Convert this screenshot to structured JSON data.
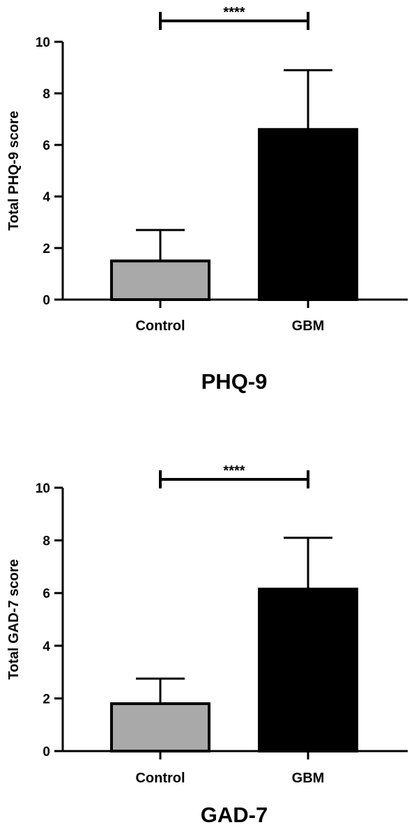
{
  "chart_data": [
    {
      "type": "bar",
      "title": "PHQ-9",
      "ylabel": "Total PHQ-9 score",
      "xlabel": "",
      "ylim": [
        0,
        10
      ],
      "yticks": [
        0,
        2,
        4,
        6,
        8,
        10
      ],
      "categories": [
        "Control",
        "GBM"
      ],
      "values": [
        1.5,
        6.6
      ],
      "error_upper": [
        2.7,
        8.9
      ],
      "bar_colors": [
        "#a9a9a9",
        "#000000"
      ],
      "significance": {
        "from": "Control",
        "to": "GBM",
        "label": "****"
      },
      "grid": false,
      "legend": "none"
    },
    {
      "type": "bar",
      "title": "GAD-7",
      "ylabel": "Total GAD-7 score",
      "xlabel": "",
      "ylim": [
        0,
        10
      ],
      "yticks": [
        0,
        2,
        4,
        6,
        8,
        10
      ],
      "categories": [
        "Control",
        "GBM"
      ],
      "values": [
        1.8,
        6.15
      ],
      "error_upper": [
        2.75,
        8.1
      ],
      "bar_colors": [
        "#a9a9a9",
        "#000000"
      ],
      "significance": {
        "from": "Control",
        "to": "GBM",
        "label": "****"
      },
      "grid": false,
      "legend": "none"
    }
  ]
}
